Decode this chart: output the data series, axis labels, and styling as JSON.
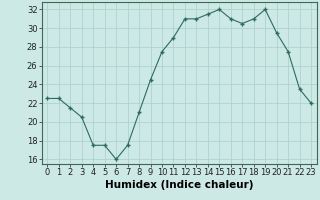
{
  "x": [
    0,
    1,
    2,
    3,
    4,
    5,
    6,
    7,
    8,
    9,
    10,
    11,
    12,
    13,
    14,
    15,
    16,
    17,
    18,
    19,
    20,
    21,
    22,
    23
  ],
  "y": [
    22.5,
    22.5,
    21.5,
    20.5,
    17.5,
    17.5,
    16.0,
    17.5,
    21.0,
    24.5,
    27.5,
    29.0,
    31.0,
    31.0,
    31.5,
    32.0,
    31.0,
    30.5,
    31.0,
    32.0,
    29.5,
    27.5,
    23.5,
    22.0
  ],
  "xlabel": "Humidex (Indice chaleur)",
  "ylim": [
    15.5,
    32.8
  ],
  "xlim": [
    -0.5,
    23.5
  ],
  "yticks": [
    16,
    18,
    20,
    22,
    24,
    26,
    28,
    30,
    32
  ],
  "xticks": [
    0,
    1,
    2,
    3,
    4,
    5,
    6,
    7,
    8,
    9,
    10,
    11,
    12,
    13,
    14,
    15,
    16,
    17,
    18,
    19,
    20,
    21,
    22,
    23
  ],
  "line_color": "#2e6b5e",
  "marker_color": "#2e6b5e",
  "bg_color": "#cce9e5",
  "grid_color": "#aacfcc",
  "xlabel_fontsize": 7.5,
  "tick_fontsize": 6.0
}
